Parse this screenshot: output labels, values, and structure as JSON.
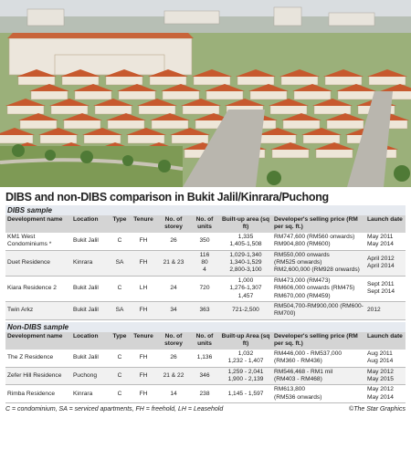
{
  "title": "DIBS and non-DIBS comparison in Bukit Jalil/Kinrara/Puchong",
  "sections": [
    {
      "heading": "DIBS sample",
      "columns": [
        "Development name",
        "Location",
        "Type",
        "Tenure",
        "No. of storey",
        "No. of units",
        "Built-up area (sq ft)",
        "Developer's selling price (RM per sq. ft.)",
        "Launch date"
      ],
      "rows": [
        [
          [
            "KM1 West Condominiums *"
          ],
          [
            "Bukit Jalil"
          ],
          [
            "C"
          ],
          [
            "FH"
          ],
          [
            "26"
          ],
          [
            "350"
          ],
          [
            "1,335",
            "1,405-1,508"
          ],
          [
            "RM747,600 (RM560 onwards)",
            "RM904,800 (RM600)"
          ],
          [
            "May 2011",
            "May 2014"
          ]
        ],
        [
          [
            "Duet Residence"
          ],
          [
            "Kinrara"
          ],
          [
            "SA"
          ],
          [
            "FH"
          ],
          [
            "21 & 23"
          ],
          [
            "116",
            "80",
            "4"
          ],
          [
            "1,029-1,340",
            "1,340-1,529",
            "2,800-3,100"
          ],
          [
            "RM550,000 onwards",
            "(RM525 onwards)",
            "RM2,600,000 (RM928 onwards)"
          ],
          [
            "April 2012",
            "April 2014"
          ]
        ],
        [
          [
            "Kiara Residence 2"
          ],
          [
            "Bukit Jalil"
          ],
          [
            "C"
          ],
          [
            "LH"
          ],
          [
            "24"
          ],
          [
            "720"
          ],
          [
            "1,000",
            "1,276-1,307",
            "1,457"
          ],
          [
            "RM473,000 (RM473)",
            "RM606,000 onwards (RM475)",
            "RM670,000 (RM459)"
          ],
          [
            "Sept 2011",
            "Sept 2014"
          ]
        ],
        [
          [
            "Twin Arkz"
          ],
          [
            "Bukit Jalil"
          ],
          [
            "SA"
          ],
          [
            "FH"
          ],
          [
            "34"
          ],
          [
            "363"
          ],
          [
            "721-2,500"
          ],
          [
            "RM504,700-RM900,000 (RM600-RM700)"
          ],
          [
            "2012"
          ]
        ]
      ]
    },
    {
      "heading": "Non-DIBS sample",
      "columns": [
        "Development name",
        "Location",
        "Type",
        "Tenure",
        "No. of storey",
        "No. of units",
        "Built-up Area (sq ft)",
        "Developer's selling price (RM per sq. ft.)",
        "Launch date"
      ],
      "rows": [
        [
          [
            "The Z Residence"
          ],
          [
            "Bukit Jalil"
          ],
          [
            "C"
          ],
          [
            "FH"
          ],
          [
            "26"
          ],
          [
            "1,136"
          ],
          [
            "1,032",
            "1,232 - 1,407"
          ],
          [
            "RM446,000 - RM537,000",
            "(RM360 - RM436)"
          ],
          [
            "Aug 2011",
            "Aug 2014"
          ]
        ],
        [
          [
            "Zefer Hill Residence"
          ],
          [
            "Puchong"
          ],
          [
            "C"
          ],
          [
            "FH"
          ],
          [
            "21 & 22"
          ],
          [
            "346"
          ],
          [
            "1,259 - 2,041",
            "1,900 - 2,139"
          ],
          [
            "RM546,468 - RM1 mil",
            "(RM403 - RM468)"
          ],
          [
            "May 2012",
            "May 2015"
          ]
        ],
        [
          [
            "Rimba Residence"
          ],
          [
            "Kinrara"
          ],
          [
            "C"
          ],
          [
            "FH"
          ],
          [
            "14"
          ],
          [
            "238"
          ],
          [
            "1,145 - 1,597"
          ],
          [
            "RM613,800",
            "(RM536 onwards)"
          ],
          [
            "May 2012",
            "May 2014"
          ]
        ]
      ]
    }
  ],
  "footnote": "C = condominium, SA = serviced apartments, FH = freehold, LH = Leasehold",
  "credit": "©The Star Graphics"
}
